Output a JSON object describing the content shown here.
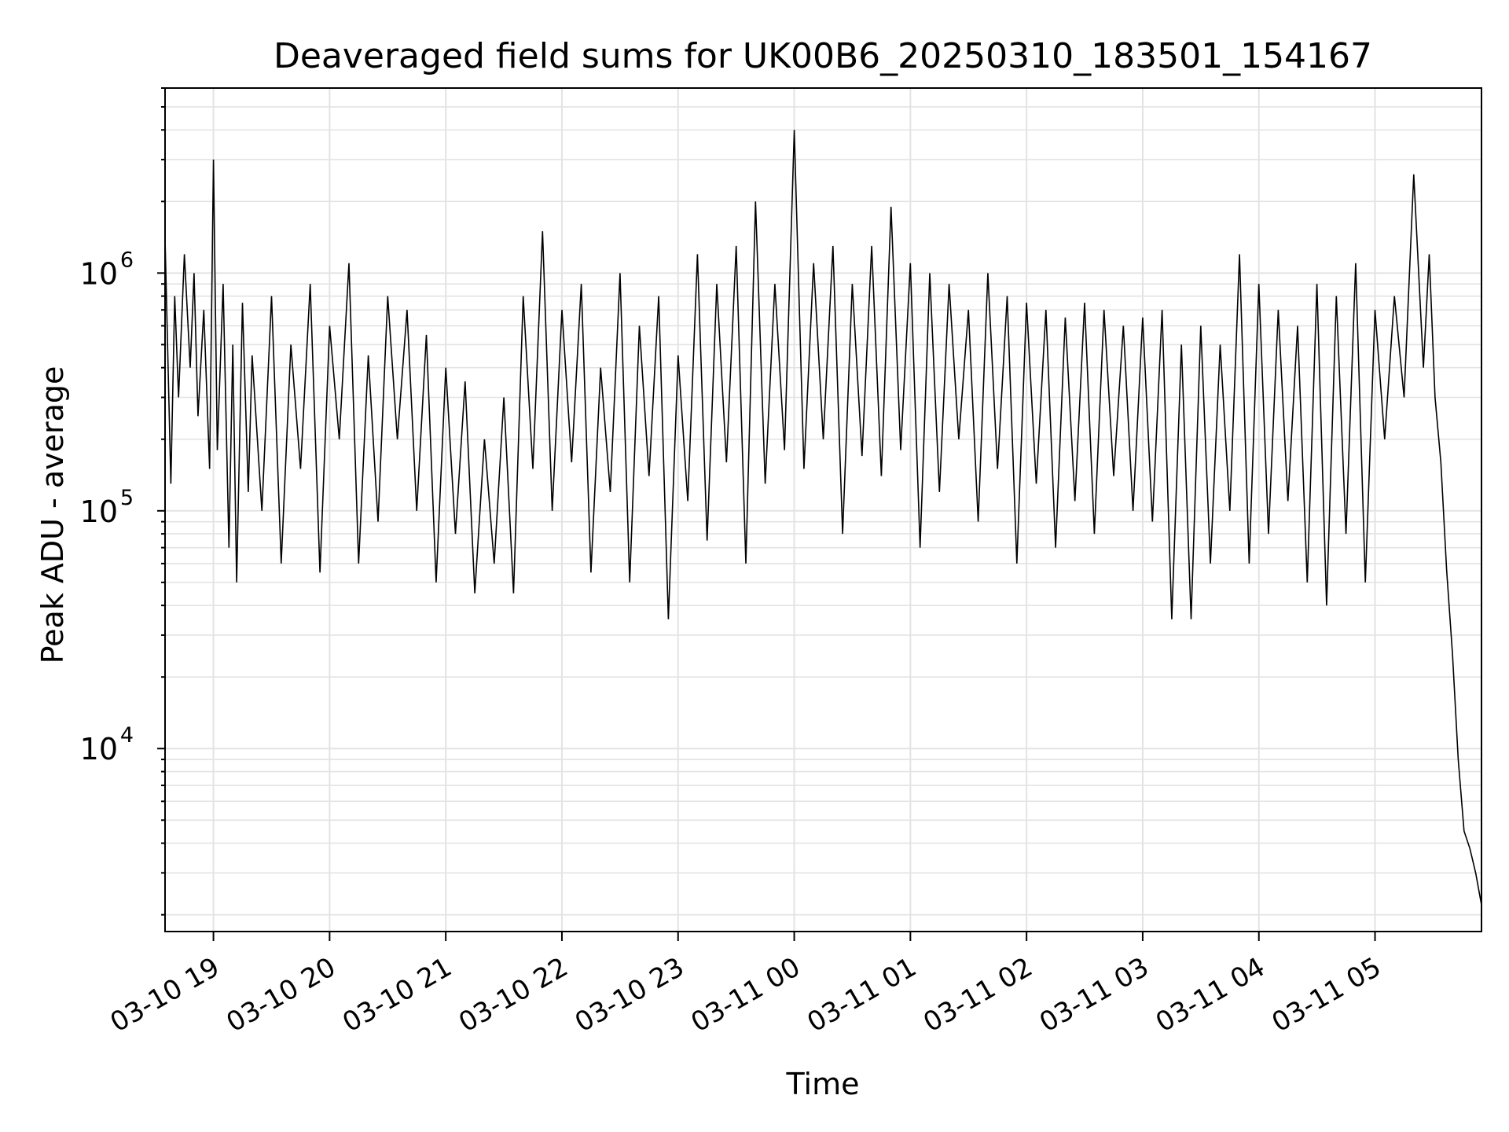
{
  "chart_data": {
    "type": "line",
    "title": "Deaveraged field sums for UK00B6_20250310_183501_154167",
    "xlabel": "Time",
    "ylabel": "Peak ADU - average",
    "yscale": "log",
    "ylim": [
      1700,
      6000000
    ],
    "xlim": [
      "2025-03-10 18:35",
      "2025-03-11 05:55"
    ],
    "grid": true,
    "x_ticks": [
      {
        "time": "2025-03-10 19:00",
        "label": "03-10 19"
      },
      {
        "time": "2025-03-10 20:00",
        "label": "03-10 20"
      },
      {
        "time": "2025-03-10 21:00",
        "label": "03-10 21"
      },
      {
        "time": "2025-03-10 22:00",
        "label": "03-10 22"
      },
      {
        "time": "2025-03-10 23:00",
        "label": "03-10 23"
      },
      {
        "time": "2025-03-11 00:00",
        "label": "03-11 00"
      },
      {
        "time": "2025-03-11 01:00",
        "label": "03-11 01"
      },
      {
        "time": "2025-03-11 02:00",
        "label": "03-11 02"
      },
      {
        "time": "2025-03-11 03:00",
        "label": "03-11 03"
      },
      {
        "time": "2025-03-11 04:00",
        "label": "03-11 04"
      },
      {
        "time": "2025-03-11 05:00",
        "label": "03-11 05"
      }
    ],
    "y_ticks": [
      {
        "value": 10000,
        "base": "10",
        "exp": "4"
      },
      {
        "value": 100000,
        "base": "10",
        "exp": "5"
      },
      {
        "value": 1000000,
        "base": "10",
        "exp": "6"
      }
    ],
    "series": [
      {
        "color": "#000000",
        "x": [
          "2025-03-10 18:35",
          "2025-03-10 18:38",
          "2025-03-10 18:40",
          "2025-03-10 18:42",
          "2025-03-10 18:45",
          "2025-03-10 18:48",
          "2025-03-10 18:50",
          "2025-03-10 18:52",
          "2025-03-10 18:55",
          "2025-03-10 18:58",
          "2025-03-10 19:00",
          "2025-03-10 19:02",
          "2025-03-10 19:05",
          "2025-03-10 19:08",
          "2025-03-10 19:10",
          "2025-03-10 19:12",
          "2025-03-10 19:15",
          "2025-03-10 19:18",
          "2025-03-10 19:20",
          "2025-03-10 19:25",
          "2025-03-10 19:30",
          "2025-03-10 19:35",
          "2025-03-10 19:40",
          "2025-03-10 19:45",
          "2025-03-10 19:50",
          "2025-03-10 19:55",
          "2025-03-10 20:00",
          "2025-03-10 20:05",
          "2025-03-10 20:10",
          "2025-03-10 20:15",
          "2025-03-10 20:20",
          "2025-03-10 20:25",
          "2025-03-10 20:30",
          "2025-03-10 20:35",
          "2025-03-10 20:40",
          "2025-03-10 20:45",
          "2025-03-10 20:50",
          "2025-03-10 20:55",
          "2025-03-10 21:00",
          "2025-03-10 21:05",
          "2025-03-10 21:10",
          "2025-03-10 21:15",
          "2025-03-10 21:20",
          "2025-03-10 21:25",
          "2025-03-10 21:30",
          "2025-03-10 21:35",
          "2025-03-10 21:40",
          "2025-03-10 21:45",
          "2025-03-10 21:50",
          "2025-03-10 21:55",
          "2025-03-10 22:00",
          "2025-03-10 22:05",
          "2025-03-10 22:10",
          "2025-03-10 22:15",
          "2025-03-10 22:20",
          "2025-03-10 22:25",
          "2025-03-10 22:30",
          "2025-03-10 22:35",
          "2025-03-10 22:40",
          "2025-03-10 22:45",
          "2025-03-10 22:50",
          "2025-03-10 22:55",
          "2025-03-10 23:00",
          "2025-03-10 23:05",
          "2025-03-10 23:10",
          "2025-03-10 23:15",
          "2025-03-10 23:20",
          "2025-03-10 23:25",
          "2025-03-10 23:30",
          "2025-03-10 23:35",
          "2025-03-10 23:40",
          "2025-03-10 23:45",
          "2025-03-10 23:50",
          "2025-03-10 23:55",
          "2025-03-11 00:00",
          "2025-03-11 00:05",
          "2025-03-11 00:10",
          "2025-03-11 00:15",
          "2025-03-11 00:20",
          "2025-03-11 00:25",
          "2025-03-11 00:30",
          "2025-03-11 00:35",
          "2025-03-11 00:40",
          "2025-03-11 00:45",
          "2025-03-11 00:50",
          "2025-03-11 00:55",
          "2025-03-11 01:00",
          "2025-03-11 01:05",
          "2025-03-11 01:10",
          "2025-03-11 01:15",
          "2025-03-11 01:20",
          "2025-03-11 01:25",
          "2025-03-11 01:30",
          "2025-03-11 01:35",
          "2025-03-11 01:40",
          "2025-03-11 01:45",
          "2025-03-11 01:50",
          "2025-03-11 01:55",
          "2025-03-11 02:00",
          "2025-03-11 02:05",
          "2025-03-11 02:10",
          "2025-03-11 02:15",
          "2025-03-11 02:20",
          "2025-03-11 02:25",
          "2025-03-11 02:30",
          "2025-03-11 02:35",
          "2025-03-11 02:40",
          "2025-03-11 02:45",
          "2025-03-11 02:50",
          "2025-03-11 02:55",
          "2025-03-11 03:00",
          "2025-03-11 03:05",
          "2025-03-11 03:10",
          "2025-03-11 03:15",
          "2025-03-11 03:20",
          "2025-03-11 03:25",
          "2025-03-11 03:30",
          "2025-03-11 03:35",
          "2025-03-11 03:40",
          "2025-03-11 03:45",
          "2025-03-11 03:50",
          "2025-03-11 03:55",
          "2025-03-11 04:00",
          "2025-03-11 04:05",
          "2025-03-11 04:10",
          "2025-03-11 04:15",
          "2025-03-11 04:20",
          "2025-03-11 04:25",
          "2025-03-11 04:30",
          "2025-03-11 04:35",
          "2025-03-11 04:40",
          "2025-03-11 04:45",
          "2025-03-11 04:50",
          "2025-03-11 04:55",
          "2025-03-11 05:00",
          "2025-03-11 05:05",
          "2025-03-11 05:10",
          "2025-03-11 05:15",
          "2025-03-11 05:20",
          "2025-03-11 05:25",
          "2025-03-11 05:28",
          "2025-03-11 05:31",
          "2025-03-11 05:34",
          "2025-03-11 05:37",
          "2025-03-11 05:40",
          "2025-03-11 05:43",
          "2025-03-11 05:46",
          "2025-03-11 05:49",
          "2025-03-11 05:52",
          "2025-03-11 05:55"
        ],
        "y": [
          1400000,
          130000,
          800000,
          300000,
          1200000,
          400000,
          1000000,
          250000,
          700000,
          150000,
          3000000,
          180000,
          900000,
          70000,
          500000,
          50000,
          750000,
          120000,
          450000,
          100000,
          800000,
          60000,
          500000,
          150000,
          900000,
          55000,
          600000,
          200000,
          1100000,
          60000,
          450000,
          90000,
          800000,
          200000,
          700000,
          100000,
          550000,
          50000,
          400000,
          80000,
          350000,
          45000,
          200000,
          60000,
          300000,
          45000,
          800000,
          150000,
          1500000,
          100000,
          700000,
          160000,
          900000,
          55000,
          400000,
          120000,
          1000000,
          50000,
          600000,
          140000,
          800000,
          35000,
          450000,
          110000,
          1200000,
          75000,
          900000,
          160000,
          1300000,
          60000,
          2000000,
          130000,
          900000,
          180000,
          4000000,
          150000,
          1100000,
          200000,
          1300000,
          80000,
          900000,
          170000,
          1300000,
          140000,
          1900000,
          180000,
          1100000,
          70000,
          1000000,
          120000,
          900000,
          200000,
          700000,
          90000,
          1000000,
          150000,
          800000,
          60000,
          750000,
          130000,
          700000,
          70000,
          650000,
          110000,
          750000,
          80000,
          700000,
          140000,
          600000,
          100000,
          650000,
          90000,
          700000,
          35000,
          500000,
          35000,
          600000,
          60000,
          500000,
          100000,
          1200000,
          60000,
          900000,
          80000,
          700000,
          110000,
          600000,
          50000,
          900000,
          40000,
          800000,
          80000,
          1100000,
          50000,
          700000,
          200000,
          800000,
          300000,
          2600000,
          400000,
          1200000,
          300000,
          160000,
          56000,
          25000,
          9000,
          4500,
          3800,
          3000,
          2200
        ]
      }
    ]
  }
}
